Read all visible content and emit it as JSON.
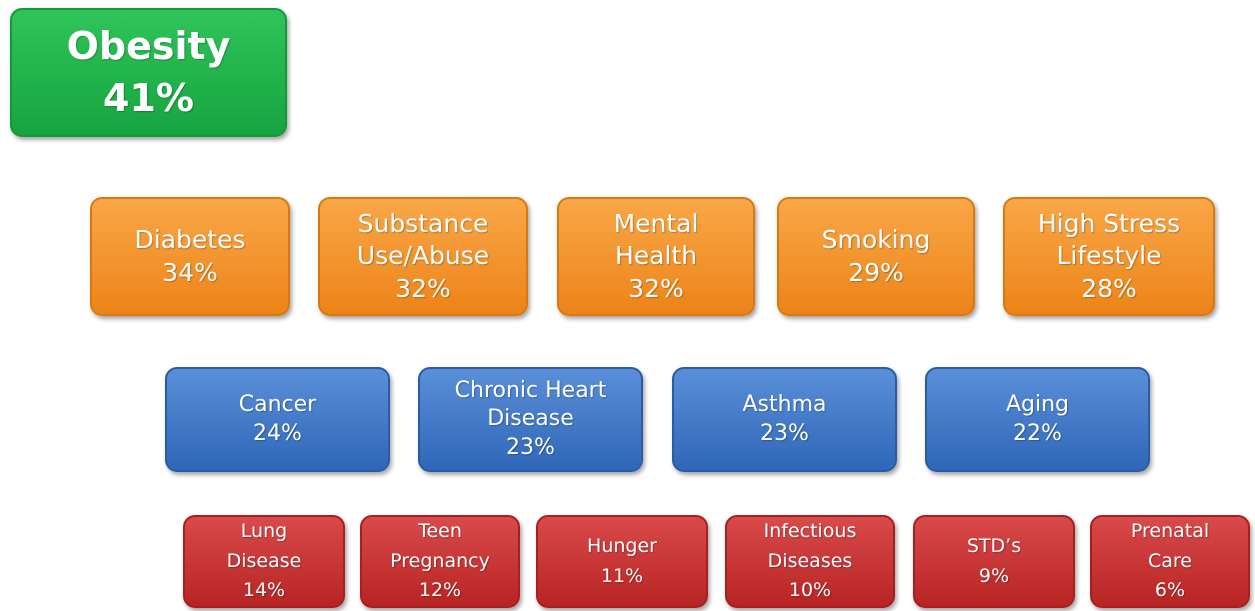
{
  "tiers": [
    {
      "items": [
        {
          "label": [
            "Obesity"
          ],
          "value": "41%"
        }
      ]
    },
    {
      "items": [
        {
          "label": [
            "Diabetes"
          ],
          "value": "34%"
        },
        {
          "label": [
            "Substance",
            "Use/Abuse"
          ],
          "value": "32%"
        },
        {
          "label": [
            "Mental",
            "Health"
          ],
          "value": "32%"
        },
        {
          "label": [
            "Smoking"
          ],
          "value": "29%"
        },
        {
          "label": [
            "High Stress",
            "Lifestyle"
          ],
          "value": "28%"
        }
      ]
    },
    {
      "items": [
        {
          "label": [
            "Cancer"
          ],
          "value": "24%"
        },
        {
          "label": [
            "Chronic Heart",
            "Disease"
          ],
          "value": "23%"
        },
        {
          "label": [
            "Asthma"
          ],
          "value": "23%"
        },
        {
          "label": [
            "Aging"
          ],
          "value": "22%"
        }
      ]
    },
    {
      "items": [
        {
          "label": [
            "Lung",
            "Disease"
          ],
          "value": "14%"
        },
        {
          "label": [
            "Teen",
            "Pregnancy"
          ],
          "value": "12%"
        },
        {
          "label": [
            "Hunger"
          ],
          "value": "11%"
        },
        {
          "label": [
            "Infectious",
            "Diseases"
          ],
          "value": "10%"
        },
        {
          "label": [
            "STD’s"
          ],
          "value": "9%"
        },
        {
          "label": [
            "Prenatal",
            "Care"
          ],
          "value": "6%"
        }
      ]
    }
  ]
}
